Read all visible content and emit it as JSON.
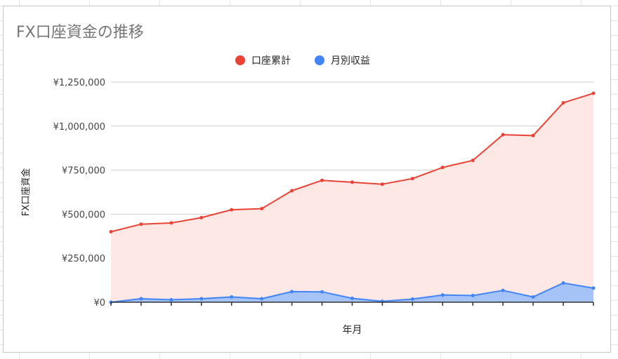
{
  "chart_data": {
    "type": "area",
    "title": "FX口座資金の推移",
    "xlabel": "年月",
    "ylabel": "FX口座資金",
    "ylim": [
      0,
      1250000
    ],
    "yticks": [
      0,
      250000,
      500000,
      750000,
      1000000,
      1250000
    ],
    "ytick_labels": [
      "¥0",
      "¥250,000",
      "¥500,000",
      "¥750,000",
      "¥1,000,000",
      "¥1,250,000"
    ],
    "grid": true,
    "legend_position": "top",
    "x": [
      1,
      2,
      3,
      4,
      5,
      6,
      7,
      8,
      9,
      10,
      11,
      12,
      13,
      14,
      15,
      16,
      17
    ],
    "series": [
      {
        "name": "口座累計",
        "color": "#ea4335",
        "fill": "#fde8e6",
        "values": [
          400000,
          443000,
          450000,
          480000,
          525000,
          531000,
          633000,
          692000,
          681000,
          670000,
          702000,
          765000,
          805000,
          951000,
          946000,
          1132000,
          1186000
        ]
      },
      {
        "name": "月別収益",
        "color": "#4285f4",
        "fill": "#a6c3f8",
        "values": [
          0,
          20000,
          14000,
          20000,
          30000,
          20000,
          60000,
          59000,
          22000,
          5000,
          18000,
          41000,
          38000,
          67000,
          30000,
          109000,
          80000
        ]
      }
    ]
  }
}
